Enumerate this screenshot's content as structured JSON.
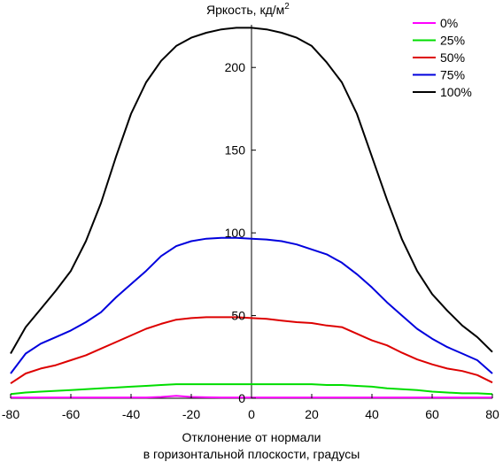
{
  "chart_data": {
    "type": "line",
    "ylabel": "Яркость, кд/м",
    "ylabel_superscript": "2",
    "xlabel_line1": "Отклонение от нормали",
    "xlabel_line2": "в горизонтальной плоскости, градусы",
    "xlim": [
      -80,
      80
    ],
    "ylim": [
      0,
      225
    ],
    "xticks": [
      -80,
      -60,
      -40,
      -20,
      0,
      20,
      40,
      60,
      80
    ],
    "yticks": [
      0,
      50,
      100,
      150,
      200
    ],
    "legend_position": "top-right",
    "x": [
      -80,
      -75,
      -70,
      -65,
      -60,
      -55,
      -50,
      -45,
      -40,
      -35,
      -30,
      -25,
      -20,
      -15,
      -10,
      -5,
      0,
      5,
      10,
      15,
      20,
      25,
      30,
      35,
      40,
      45,
      50,
      55,
      60,
      65,
      70,
      75,
      80
    ],
    "series": [
      {
        "name": "0%",
        "color": "#ff00ff",
        "values": [
          0.5,
          0.5,
          0.5,
          0.5,
          0.5,
          0.5,
          0.5,
          0.5,
          0.5,
          0.5,
          0.8,
          1.5,
          0.8,
          0.6,
          0.5,
          0.5,
          0.5,
          0.5,
          0.5,
          0.5,
          0.5,
          0.5,
          0.5,
          0.5,
          0.5,
          0.5,
          0.5,
          0.5,
          0.5,
          0.5,
          0.5,
          0.5,
          0.5
        ]
      },
      {
        "name": "25%",
        "color": "#00dd00",
        "values": [
          2.5,
          3.5,
          4,
          4.5,
          5,
          5.5,
          6,
          6.5,
          7,
          7.5,
          8,
          8.5,
          8.5,
          8.5,
          8.5,
          8.5,
          8.5,
          8.5,
          8.5,
          8.5,
          8.5,
          8,
          8,
          7.5,
          7,
          6,
          5.5,
          5,
          4,
          3.5,
          3,
          3,
          2.5
        ]
      },
      {
        "name": "50%",
        "color": "#dd0000",
        "values": [
          9,
          15,
          18,
          20,
          23,
          26,
          30,
          34,
          38,
          42,
          45,
          47.5,
          48.5,
          49,
          49,
          49,
          48.5,
          48,
          47,
          46,
          45.5,
          44,
          43,
          39,
          35,
          32,
          27.5,
          23.5,
          20.5,
          18,
          16.5,
          14,
          9.5
        ]
      },
      {
        "name": "75%",
        "color": "#0000dd",
        "values": [
          15,
          27,
          33,
          37,
          41,
          46,
          52,
          61,
          69,
          77,
          86,
          92,
          95,
          96.5,
          97,
          97,
          96.5,
          96,
          95,
          93,
          90,
          87,
          82,
          75,
          67,
          58,
          50,
          42,
          36,
          31,
          27,
          23,
          15
        ]
      },
      {
        "name": "100%",
        "color": "#000000",
        "values": [
          27,
          43,
          54,
          65,
          77,
          95,
          118,
          146,
          172,
          191,
          204,
          213,
          218,
          221,
          223,
          224,
          224,
          223,
          221,
          218,
          213,
          203,
          191,
          172,
          146,
          120,
          96,
          77,
          63,
          53,
          44,
          37,
          28
        ]
      }
    ]
  }
}
